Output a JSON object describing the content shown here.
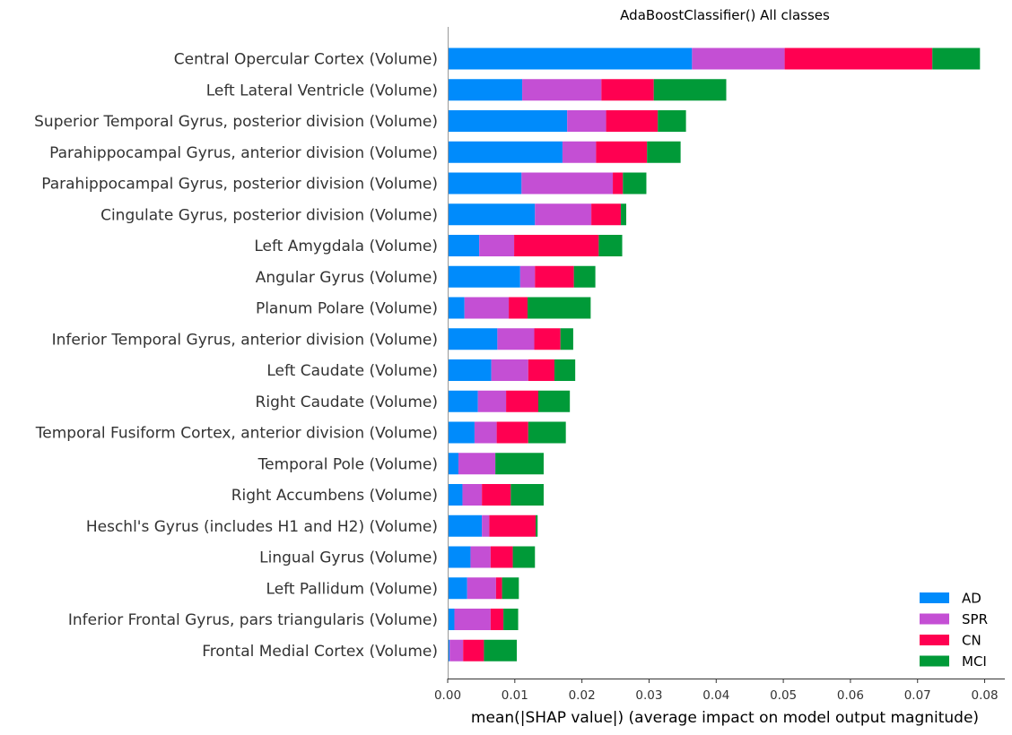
{
  "chart_data": {
    "type": "bar",
    "orientation": "horizontal",
    "stacked": true,
    "title": "AdaBoostClassifier() All classes",
    "xlabel": "mean(|SHAP value|) (average impact on model output magnitude)",
    "ylabel": "",
    "xlim": [
      0,
      0.083
    ],
    "xticks": [
      0.0,
      0.01,
      0.02,
      0.03,
      0.04,
      0.05,
      0.06,
      0.07,
      0.08
    ],
    "xtick_labels": [
      "0.00",
      "0.01",
      "0.02",
      "0.03",
      "0.04",
      "0.05",
      "0.06",
      "0.07",
      "0.08"
    ],
    "grid": false,
    "legend_position": "bottom-right",
    "categories": [
      "Central Opercular Cortex (Volume)",
      "Left Lateral Ventricle (Volume)",
      "Superior Temporal Gyrus, posterior division (Volume)",
      "Parahippocampal Gyrus, anterior division (Volume)",
      "Parahippocampal Gyrus, posterior division (Volume)",
      "Cingulate Gyrus, posterior division (Volume)",
      "Left Amygdala (Volume)",
      "Angular Gyrus (Volume)",
      "Planum Polare (Volume)",
      "Inferior Temporal Gyrus, anterior division (Volume)",
      "Left Caudate (Volume)",
      "Right Caudate (Volume)",
      "Temporal Fusiform Cortex, anterior division (Volume)",
      "Temporal Pole (Volume)",
      "Right Accumbens (Volume)",
      "Heschl's Gyrus (includes H1 and H2) (Volume)",
      "Lingual Gyrus (Volume)",
      "Left Pallidum (Volume)",
      "Inferior Frontal Gyrus, pars triangularis (Volume)",
      "Frontal Medial Cortex (Volume)"
    ],
    "series": [
      {
        "name": "AD",
        "color": "#008bfb",
        "values": [
          0.0364,
          0.0111,
          0.0178,
          0.0171,
          0.011,
          0.013,
          0.0047,
          0.0108,
          0.0025,
          0.0074,
          0.0065,
          0.0045,
          0.004,
          0.0016,
          0.0022,
          0.0051,
          0.0034,
          0.0029,
          0.001,
          0.0003
        ]
      },
      {
        "name": "SPR",
        "color": "#c44fd4",
        "values": [
          0.0138,
          0.0118,
          0.0058,
          0.005,
          0.0136,
          0.0084,
          0.0052,
          0.0022,
          0.0066,
          0.0055,
          0.0055,
          0.0042,
          0.0033,
          0.0055,
          0.0029,
          0.0011,
          0.003,
          0.0043,
          0.0054,
          0.002
        ]
      },
      {
        "name": "CN",
        "color": "#ff0051",
        "values": [
          0.022,
          0.0078,
          0.0077,
          0.0076,
          0.0015,
          0.0044,
          0.0126,
          0.0058,
          0.0028,
          0.0039,
          0.0039,
          0.0048,
          0.0047,
          0.0,
          0.0043,
          0.0069,
          0.0033,
          0.0009,
          0.0019,
          0.0031
        ]
      },
      {
        "name": "MCI",
        "color": "#009a38",
        "values": [
          0.0071,
          0.0108,
          0.0042,
          0.005,
          0.0035,
          0.0008,
          0.0035,
          0.0032,
          0.0094,
          0.0019,
          0.0031,
          0.0047,
          0.0056,
          0.0072,
          0.0049,
          0.0003,
          0.0033,
          0.0025,
          0.0022,
          0.0049
        ]
      }
    ]
  }
}
